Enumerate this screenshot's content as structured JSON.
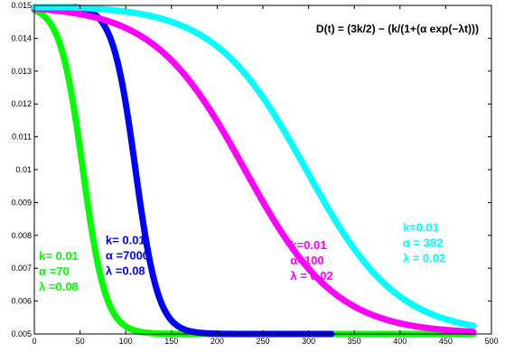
{
  "chart_data": {
    "type": "line",
    "title": "D(t) = (3k/2) − (k/(1+(α exp(−λt)))",
    "xlabel": "",
    "ylabel": "",
    "xlim": [
      0,
      500
    ],
    "ylim": [
      0.005,
      0.015
    ],
    "grid": false,
    "xticks": [
      0,
      50,
      100,
      150,
      200,
      250,
      300,
      350,
      400,
      450,
      500
    ],
    "yticks": [
      0.005,
      0.006,
      0.007,
      0.008,
      0.009,
      0.01,
      0.011,
      0.012,
      0.013,
      0.014,
      0.015
    ],
    "xtick_labels": [
      "0",
      "50",
      "100",
      "150",
      "200",
      "250",
      "300",
      "350",
      "400",
      "450",
      "500"
    ],
    "ytick_labels": [
      "0.005",
      "0.006",
      "0.007",
      "0.008",
      "0.009",
      "0.01",
      "0.011",
      "0.012",
      "0.013",
      "0.014",
      "0.015"
    ],
    "series": [
      {
        "k": 0.01,
        "alpha": 70,
        "lambda": 0.08,
        "color": "#00ff00",
        "t_end": 480,
        "annotation": [
          "k= 0.01",
          "α =70",
          "λ =0.08"
        ]
      },
      {
        "k": 0.01,
        "alpha": 7000,
        "lambda": 0.08,
        "color": "#0000ff",
        "t_end": 325,
        "annotation": [
          "k= 0.01",
          "α =7000",
          "λ =0.08"
        ]
      },
      {
        "k": 0.01,
        "alpha": 100,
        "lambda": 0.02,
        "color": "#ff00ff",
        "t_end": 480,
        "annotation": [
          "k=0.01",
          "α=100",
          "λ = 0.02"
        ]
      },
      {
        "k": 0.01,
        "alpha": 382,
        "lambda": 0.02,
        "color": "#00ffff",
        "t_end": 480,
        "annotation": [
          "k=0.01",
          "α = 382",
          "λ = 0.02"
        ]
      }
    ]
  }
}
